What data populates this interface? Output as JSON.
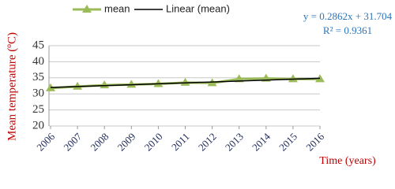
{
  "chart_data": {
    "type": "line",
    "categories": [
      "2006",
      "2007",
      "2008",
      "2009",
      "2010",
      "2011",
      "2012",
      "2013",
      "2014",
      "2015",
      "2016"
    ],
    "series": [
      {
        "name": "mean",
        "color": "#9bbb59",
        "marker": "triangle",
        "values": [
          31.8,
          32.3,
          32.7,
          32.9,
          33.1,
          33.5,
          33.4,
          34.6,
          34.8,
          34.6,
          34.6
        ]
      },
      {
        "name": "Linear (mean)",
        "color": "#000000",
        "values": [
          31.99,
          32.28,
          32.56,
          32.85,
          33.14,
          33.42,
          33.71,
          33.99,
          34.28,
          34.57,
          34.85
        ]
      }
    ],
    "ylim": [
      20,
      45
    ],
    "yticks": [
      20,
      25,
      30,
      35,
      40,
      45
    ],
    "grid": true,
    "y_label": "Mean temperature (ºC)",
    "x_label": "Time (years)",
    "annotations": [
      "y = 0.2862x + 31.704",
      "R² = 0.9361"
    ]
  }
}
